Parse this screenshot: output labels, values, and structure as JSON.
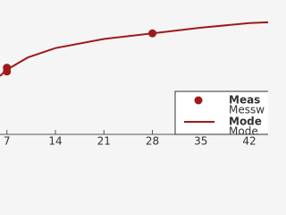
{
  "chart_data": {
    "type": "line",
    "xlim": [
      6,
      44.7
    ],
    "ylim": [
      0,
      50
    ],
    "xticks": [
      7,
      14,
      21,
      28,
      35,
      42
    ],
    "series": [
      {
        "name": "Meas",
        "name_line2": "Messw",
        "kind": "scatter",
        "color": "#9e1b1b",
        "x": [
          7,
          7,
          28
        ],
        "values": [
          24.8,
          23.4,
          37.6
        ]
      },
      {
        "name": "Mode",
        "name_line2": "Mode",
        "kind": "line",
        "color": "#9e1b1b",
        "x": [
          6,
          7,
          10,
          14,
          21,
          28,
          35,
          42,
          44.7
        ],
        "values": [
          21.7,
          24.1,
          28.6,
          32.1,
          35.5,
          37.6,
          39.7,
          41.4,
          41.7
        ]
      }
    ]
  }
}
